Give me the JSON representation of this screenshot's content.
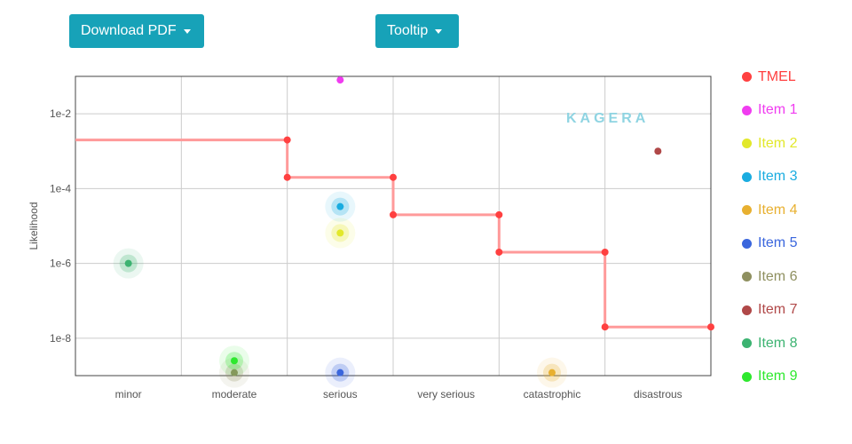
{
  "toolbar": {
    "download_label": "Download PDF",
    "tooltip_label": "Tooltip"
  },
  "watermark_text": "KAGERA",
  "chart_data": {
    "type": "scatter",
    "title": "",
    "xlabel": "",
    "ylabel": "Likelihood",
    "x_scale": "categorical",
    "y_scale": "log",
    "categories": [
      "minor",
      "moderate",
      "serious",
      "very serious",
      "catastrophic",
      "disastrous"
    ],
    "y_ticks": [
      {
        "value": 0.01,
        "label": "1e-2"
      },
      {
        "value": 0.0001,
        "label": "1e-4"
      },
      {
        "value": 1e-06,
        "label": "1e-6"
      },
      {
        "value": 1e-08,
        "label": "1e-8"
      }
    ],
    "ylim": [
      1e-09,
      0.1
    ],
    "grid": true,
    "legend_position": "right",
    "tmel": {
      "name": "TMEL",
      "color": "#ff4040",
      "line_color": "#ff9a9a",
      "points": [
        {
          "x": 0,
          "y": 0.002
        },
        {
          "x": 2,
          "y": 0.002
        },
        {
          "x": 2,
          "y": 0.0002
        },
        {
          "x": 3,
          "y": 0.0002
        },
        {
          "x": 3,
          "y": 2e-05
        },
        {
          "x": 4,
          "y": 2e-05
        },
        {
          "x": 4,
          "y": 2e-06
        },
        {
          "x": 5,
          "y": 2e-06
        },
        {
          "x": 5,
          "y": 2e-08
        },
        {
          "x": 6,
          "y": 2e-08
        }
      ]
    },
    "series": [
      {
        "name": "Item 1",
        "color": "#f03cf0",
        "category": "serious",
        "y": 0.08,
        "halo": false
      },
      {
        "name": "Item 2",
        "color": "#e2e82a",
        "category": "serious",
        "y": 6.5e-06,
        "halo": true
      },
      {
        "name": "Item 3",
        "color": "#1aace0",
        "category": "serious",
        "y": 3.3e-05,
        "halo": true
      },
      {
        "name": "Item 4",
        "color": "#e8b030",
        "category": "catastrophic",
        "y": 1.2e-09,
        "halo": true
      },
      {
        "name": "Item 5",
        "color": "#3a66dd",
        "category": "serious",
        "y": 1.2e-09,
        "halo": true
      },
      {
        "name": "Item 6",
        "color": "#8f9060",
        "category": "moderate",
        "y": 1.2e-09,
        "halo": true
      },
      {
        "name": "Item 7",
        "color": "#b04848",
        "category": "disastrous",
        "y": 0.001,
        "halo": false
      },
      {
        "name": "Item 8",
        "color": "#3cb371",
        "category": "minor",
        "y": 1e-06,
        "halo": true
      },
      {
        "name": "Item 9",
        "color": "#2ee82e",
        "category": "moderate",
        "y": 2.5e-09,
        "halo": true
      }
    ]
  }
}
